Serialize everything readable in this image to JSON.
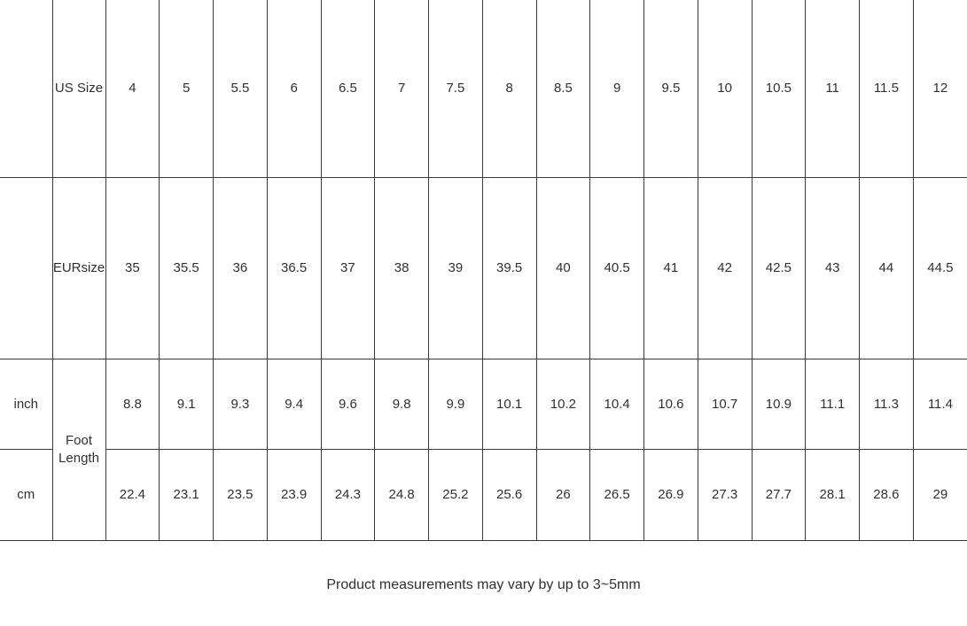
{
  "chart_data": {
    "type": "table",
    "rows": [
      {
        "unit_label": "",
        "label": "US Size",
        "values": [
          "4",
          "5",
          "5.5",
          "6",
          "6.5",
          "7",
          "7.5",
          "8",
          "8.5",
          "9",
          "9.5",
          "10",
          "10.5",
          "11",
          "11.5",
          "12"
        ]
      },
      {
        "unit_label": "",
        "label": "EURsize",
        "values": [
          "35",
          "35.5",
          "36",
          "36.5",
          "37",
          "38",
          "39",
          "39.5",
          "40",
          "40.5",
          "41",
          "42",
          "42.5",
          "43",
          "44",
          "44.5"
        ]
      },
      {
        "unit_label": "inch",
        "label": "Foot Length",
        "label_rowspan": 2,
        "values": [
          "8.8",
          "9.1",
          "9.3",
          "9.4",
          "9.6",
          "9.8",
          "9.9",
          "10.1",
          "10.2",
          "10.4",
          "10.6",
          "10.7",
          "10.9",
          "11.1",
          "11.3",
          "11.4"
        ]
      },
      {
        "unit_label": "cm",
        "label": null,
        "values": [
          "22.4",
          "23.1",
          "23.5",
          "23.9",
          "24.3",
          "24.8",
          "25.2",
          "25.6",
          "26",
          "26.5",
          "26.9",
          "27.3",
          "27.7",
          "28.1",
          "28.6",
          "29"
        ]
      }
    ],
    "footnote": "Product measurements may vary by up to 3~5mm",
    "layout": {
      "grid": "on",
      "columns": 18,
      "border_color": "#3a3a3a",
      "text_color": "#303030"
    }
  }
}
